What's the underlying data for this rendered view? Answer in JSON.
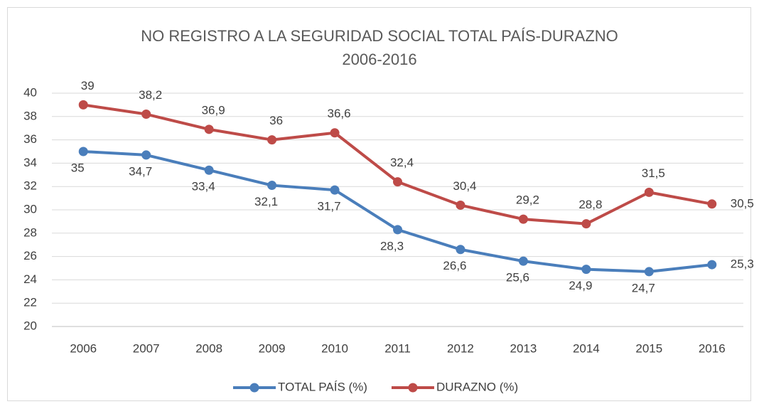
{
  "chart_data": {
    "type": "line",
    "title": "NO REGISTRO A LA SEGURIDAD SOCIAL TOTAL PAÍS-DURAZNO",
    "subtitle": "2006-2016",
    "categories": [
      "2006",
      "2007",
      "2008",
      "2009",
      "2010",
      "2011",
      "2012",
      "2013",
      "2014",
      "2015",
      "2016"
    ],
    "series": [
      {
        "name": "TOTAL PAÍS (%)",
        "color": "#4a7ebb",
        "values": [
          35,
          34.7,
          33.4,
          32.1,
          31.7,
          28.3,
          26.6,
          25.6,
          24.9,
          24.7,
          25.3
        ],
        "value_labels": [
          "35",
          "34,7",
          "33,4",
          "32,1",
          "31,7",
          "28,3",
          "26,6",
          "25,6",
          "24,9",
          "24,7",
          "25,3"
        ]
      },
      {
        "name": "DURAZNO (%)",
        "color": "#be4b48",
        "values": [
          39,
          38.2,
          36.9,
          36,
          36.6,
          32.4,
          30.4,
          29.2,
          28.8,
          31.5,
          30.5
        ],
        "value_labels": [
          "39",
          "38,2",
          "36,9",
          "36",
          "36,6",
          "32,4",
          "30,4",
          "29,2",
          "28,8",
          "31,5",
          "30,5"
        ]
      }
    ],
    "ylim": [
      20,
      40
    ],
    "yticks": [
      20,
      22,
      24,
      26,
      28,
      30,
      32,
      34,
      36,
      38,
      40
    ],
    "grid": true,
    "legend": "bottom"
  }
}
